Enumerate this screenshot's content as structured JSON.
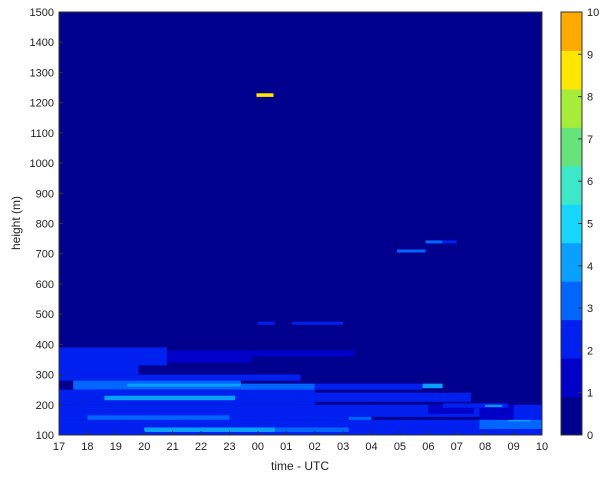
{
  "chart_data": {
    "type": "heatmap",
    "title": "",
    "xlabel": "time - UTC",
    "ylabel": "height (m)",
    "x_ticks": [
      "17",
      "18",
      "19",
      "20",
      "21",
      "22",
      "23",
      "00",
      "01",
      "02",
      "03",
      "04",
      "05",
      "06",
      "07",
      "08",
      "09",
      "10"
    ],
    "y_ticks": [
      100,
      200,
      300,
      400,
      500,
      600,
      700,
      800,
      900,
      1000,
      1100,
      1200,
      1300,
      1400,
      1500
    ],
    "ylim": [
      100,
      1500
    ],
    "colorbar": {
      "ticks": [
        0,
        1,
        2,
        3,
        4,
        5,
        6,
        7,
        8,
        9,
        10
      ],
      "range": [
        0,
        10
      ],
      "colors": [
        "#00008f",
        "#0000c8",
        "#0020f0",
        "#0066ff",
        "#0aa0ff",
        "#18d6ff",
        "#3ce8c8",
        "#66e37a",
        "#a8ec3a",
        "#ffe600",
        "#ffaa00"
      ]
    },
    "background_value": 0.5,
    "cells": [
      {
        "x0": 17.0,
        "x1": 20.8,
        "y0": 330,
        "y1": 390,
        "v": 2.5
      },
      {
        "x0": 17.0,
        "x1": 19.8,
        "y0": 300,
        "y1": 330,
        "v": 2.7
      },
      {
        "x0": 20.8,
        "x1": 23.8,
        "y0": 340,
        "y1": 380,
        "v": 1.8
      },
      {
        "x0": 23.8,
        "x1": 27.4,
        "y0": 360,
        "y1": 380,
        "v": 1.6
      },
      {
        "x0": 17.0,
        "x1": 25.5,
        "y0": 280,
        "y1": 300,
        "v": 2.8
      },
      {
        "x0": 17.5,
        "x1": 23.4,
        "y0": 250,
        "y1": 280,
        "v": 3.6
      },
      {
        "x0": 19.4,
        "x1": 23.4,
        "y0": 260,
        "y1": 270,
        "v": 4.5
      },
      {
        "x0": 23.4,
        "x1": 26.0,
        "y0": 240,
        "y1": 270,
        "v": 3.2
      },
      {
        "x0": 26.0,
        "x1": 29.8,
        "y0": 250,
        "y1": 270,
        "v": 2.5
      },
      {
        "x0": 29.8,
        "x1": 30.5,
        "y0": 255,
        "y1": 270,
        "v": 4.2
      },
      {
        "x0": 17.0,
        "x1": 26.0,
        "y0": 200,
        "y1": 250,
        "v": 2.9
      },
      {
        "x0": 18.6,
        "x1": 23.2,
        "y0": 215,
        "y1": 230,
        "v": 4.0
      },
      {
        "x0": 26.0,
        "x1": 31.5,
        "y0": 210,
        "y1": 240,
        "v": 2.2
      },
      {
        "x0": 17.0,
        "x1": 28.0,
        "y0": 150,
        "y1": 200,
        "v": 2.8
      },
      {
        "x0": 18.0,
        "x1": 23.0,
        "y0": 150,
        "y1": 165,
        "v": 3.8
      },
      {
        "x0": 28.0,
        "x1": 31.8,
        "y0": 160,
        "y1": 200,
        "v": 2.3
      },
      {
        "x0": 31.8,
        "x1": 33.8,
        "y0": 150,
        "y1": 200,
        "v": 1.8
      },
      {
        "x0": 30.0,
        "x1": 31.6,
        "y0": 170,
        "y1": 200,
        "v": 1.4
      },
      {
        "x0": 27.2,
        "x1": 28.0,
        "y0": 140,
        "y1": 160,
        "v": 3.8
      },
      {
        "x0": 17.0,
        "x1": 33.0,
        "y0": 100,
        "y1": 150,
        "v": 2.8
      },
      {
        "x0": 20.0,
        "x1": 24.6,
        "y0": 110,
        "y1": 125,
        "v": 4.2
      },
      {
        "x0": 24.6,
        "x1": 27.2,
        "y0": 110,
        "y1": 125,
        "v": 3.8
      },
      {
        "x0": 33.0,
        "x1": 34.0,
        "y0": 100,
        "y1": 200,
        "v": 2.4
      },
      {
        "x0": 31.8,
        "x1": 34.0,
        "y0": 120,
        "y1": 150,
        "v": 3.4
      },
      {
        "x0": 32.8,
        "x1": 33.6,
        "y0": 145,
        "y1": 150,
        "v": 4.8
      },
      {
        "x0": 30.5,
        "x1": 32.8,
        "y0": 190,
        "y1": 205,
        "v": 2.2
      },
      {
        "x0": 32.0,
        "x1": 32.6,
        "y0": 193,
        "y1": 200,
        "v": 4.0
      },
      {
        "x0": 24.0,
        "x1": 24.6,
        "y0": 465,
        "y1": 475,
        "v": 2.2
      },
      {
        "x0": 25.2,
        "x1": 27.0,
        "y0": 465,
        "y1": 475,
        "v": 2.2
      },
      {
        "x0": 28.9,
        "x1": 29.9,
        "y0": 704,
        "y1": 714,
        "v": 3.6
      },
      {
        "x0": 29.9,
        "x1": 30.5,
        "y0": 734,
        "y1": 744,
        "v": 3.6
      },
      {
        "x0": 30.5,
        "x1": 31.0,
        "y0": 734,
        "y1": 744,
        "v": 2.2
      },
      {
        "x0": 23.95,
        "x1": 24.55,
        "y0": 1219,
        "y1": 1231,
        "v": 9.8
      }
    ]
  }
}
